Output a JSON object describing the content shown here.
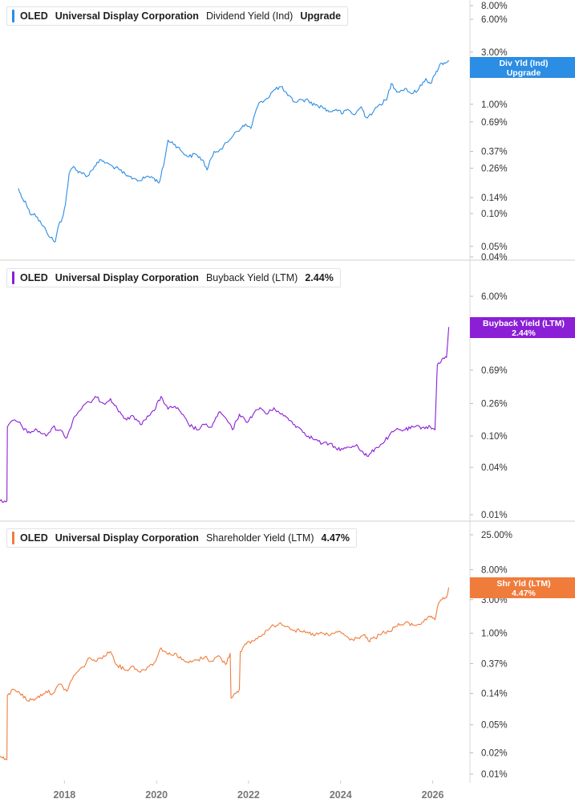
{
  "colors": {
    "dividend": "#2b8de3",
    "buyback": "#8a1fd6",
    "shareholder": "#f07c3c",
    "separator": "#cfcfcf",
    "tick_text": "#333333",
    "xtick_text": "#777777"
  },
  "x_axis": {
    "range": [
      2016.6,
      2026.6
    ],
    "ticks": [
      2018,
      2020,
      2022,
      2024,
      2026
    ],
    "tick_labels": [
      "2018",
      "2020",
      "2022",
      "2024",
      "2026"
    ]
  },
  "panels": [
    {
      "ticker": "OLED",
      "company": "Universal Display Corporation",
      "metric": "Dividend Yield (Ind)",
      "value": "Upgrade",
      "tag_line1": "Div Yld (Ind)",
      "tag_line2": "Upgrade"
    },
    {
      "ticker": "OLED",
      "company": "Universal Display Corporation",
      "metric": "Buyback Yield (LTM)",
      "value": "2.44%",
      "tag_line1": "Buyback Yield (LTM)",
      "tag_line2": "2.44%"
    },
    {
      "ticker": "OLED",
      "company": "Universal Display Corporation",
      "metric": "Shareholder Yield (LTM)",
      "value": "4.47%",
      "tag_line1": "Shr Yld (LTM)",
      "tag_line2": "4.47%"
    }
  ],
  "chart_data": [
    {
      "type": "line",
      "title": "OLED Universal Display Corporation Dividend Yield (Ind)",
      "series": [
        {
          "name": "Dividend Yield (Ind)",
          "x": [
            2017.0,
            2017.07,
            2017.15,
            2017.25,
            2017.35,
            2017.5,
            2017.6,
            2017.7,
            2017.8,
            2017.88,
            2017.95,
            2018.02,
            2018.1,
            2018.2,
            2018.25,
            2018.35,
            2018.5,
            2018.65,
            2018.8,
            2018.9,
            2019.05,
            2019.2,
            2019.35,
            2019.5,
            2019.65,
            2019.8,
            2019.95,
            2020.05,
            2020.15,
            2020.25,
            2020.4,
            2020.55,
            2020.7,
            2020.85,
            2021.0,
            2021.1,
            2021.25,
            2021.4,
            2021.55,
            2021.7,
            2021.85,
            2021.95,
            2022.05,
            2022.15,
            2022.25,
            2022.4,
            2022.55,
            2022.7,
            2022.85,
            2023.0,
            2023.15,
            2023.3,
            2023.45,
            2023.6,
            2023.75,
            2023.9,
            2024.05,
            2024.15,
            2024.3,
            2024.45,
            2024.55,
            2024.7,
            2024.85,
            2025.0,
            2025.1,
            2025.25,
            2025.4,
            2025.55,
            2025.7,
            2025.85,
            2025.95,
            2026.05,
            2026.15,
            2026.25,
            2026.35
          ],
          "y": [
            0.17,
            0.14,
            0.13,
            0.1,
            0.1,
            0.08,
            0.07,
            0.06,
            0.055,
            0.08,
            0.09,
            0.12,
            0.23,
            0.27,
            0.25,
            0.24,
            0.22,
            0.27,
            0.31,
            0.29,
            0.27,
            0.25,
            0.22,
            0.21,
            0.2,
            0.22,
            0.21,
            0.19,
            0.27,
            0.47,
            0.43,
            0.37,
            0.33,
            0.35,
            0.31,
            0.25,
            0.37,
            0.39,
            0.45,
            0.55,
            0.61,
            0.65,
            0.6,
            0.85,
            1.05,
            1.13,
            1.35,
            1.45,
            1.2,
            1.05,
            1.1,
            1.08,
            0.98,
            0.95,
            0.85,
            0.9,
            0.82,
            0.9,
            0.8,
            0.95,
            0.76,
            0.84,
            1.0,
            1.1,
            1.55,
            1.3,
            1.4,
            1.25,
            1.38,
            1.72,
            1.55,
            1.85,
            2.3,
            2.4,
            2.52
          ]
        }
      ],
      "y_scale": "log",
      "y_ticks": [
        8.0,
        6.0,
        3.0,
        1.0,
        0.69,
        0.37,
        0.26,
        0.14,
        0.1,
        0.05,
        0.04
      ],
      "y_tick_labels": [
        "8.00%",
        "6.00%",
        "3.00%",
        "1.00%",
        "0.69%",
        "0.37%",
        "0.26%",
        "0.14%",
        "0.10%",
        "0.05%",
        "0.04%"
      ],
      "grid": false,
      "legend": "top-left"
    },
    {
      "type": "line",
      "title": "OLED Universal Display Corporation Buyback Yield (LTM)",
      "series": [
        {
          "name": "Buyback Yield (LTM)",
          "x": [
            2016.6,
            2016.7,
            2016.75,
            2016.76,
            2016.9,
            2017.0,
            2017.2,
            2017.4,
            2017.6,
            2017.75,
            2017.9,
            2018.05,
            2018.2,
            2018.4,
            2018.55,
            2018.7,
            2018.85,
            2019.0,
            2019.15,
            2019.35,
            2019.5,
            2019.65,
            2019.8,
            2019.95,
            2020.1,
            2020.25,
            2020.4,
            2020.55,
            2020.7,
            2020.9,
            2021.05,
            2021.2,
            2021.35,
            2021.5,
            2021.65,
            2021.8,
            2021.95,
            2022.1,
            2022.25,
            2022.4,
            2022.55,
            2022.7,
            2022.85,
            2023.0,
            2023.15,
            2023.3,
            2023.45,
            2023.6,
            2023.75,
            2023.9,
            2024.05,
            2024.2,
            2024.35,
            2024.5,
            2024.6,
            2024.75,
            2024.9,
            2025.05,
            2025.2,
            2025.4,
            2025.6,
            2025.8,
            2025.95,
            2026.05,
            2026.1,
            2026.2,
            2026.3,
            2026.35
          ],
          "y": [
            0.015,
            0.015,
            0.015,
            0.13,
            0.16,
            0.15,
            0.11,
            0.12,
            0.1,
            0.13,
            0.12,
            0.095,
            0.17,
            0.24,
            0.27,
            0.31,
            0.26,
            0.3,
            0.22,
            0.16,
            0.18,
            0.14,
            0.18,
            0.21,
            0.32,
            0.22,
            0.24,
            0.19,
            0.14,
            0.12,
            0.14,
            0.13,
            0.2,
            0.17,
            0.12,
            0.19,
            0.15,
            0.19,
            0.23,
            0.19,
            0.23,
            0.19,
            0.17,
            0.14,
            0.12,
            0.1,
            0.09,
            0.08,
            0.08,
            0.07,
            0.068,
            0.072,
            0.078,
            0.06,
            0.055,
            0.07,
            0.08,
            0.1,
            0.12,
            0.12,
            0.13,
            0.13,
            0.13,
            0.12,
            0.8,
            0.95,
            1.0,
            2.44
          ]
        }
      ],
      "y_scale": "log",
      "y_ticks": [
        6.0,
        0.69,
        0.26,
        0.1,
        0.04,
        0.01
      ],
      "y_tick_labels": [
        "6.00%",
        "0.69%",
        "0.26%",
        "0.10%",
        "0.04%",
        "0.01%"
      ],
      "grid": false,
      "legend": "top-left"
    },
    {
      "type": "line",
      "title": "OLED Universal Display Corporation Shareholder Yield (LTM)",
      "series": [
        {
          "name": "Shareholder Yield (LTM)",
          "x": [
            2016.6,
            2016.7,
            2016.75,
            2016.76,
            2016.9,
            2017.0,
            2017.2,
            2017.4,
            2017.6,
            2017.75,
            2017.9,
            2018.05,
            2018.2,
            2018.4,
            2018.55,
            2018.7,
            2018.85,
            2019.0,
            2019.15,
            2019.35,
            2019.5,
            2019.65,
            2019.8,
            2019.95,
            2020.1,
            2020.25,
            2020.4,
            2020.55,
            2020.7,
            2020.9,
            2021.05,
            2021.2,
            2021.35,
            2021.5,
            2021.6,
            2021.62,
            2021.7,
            2021.8,
            2021.82,
            2021.95,
            2022.1,
            2022.25,
            2022.4,
            2022.55,
            2022.7,
            2022.85,
            2023.0,
            2023.15,
            2023.3,
            2023.45,
            2023.6,
            2023.75,
            2023.9,
            2024.05,
            2024.2,
            2024.35,
            2024.5,
            2024.6,
            2024.75,
            2024.9,
            2025.05,
            2025.2,
            2025.4,
            2025.6,
            2025.8,
            2025.95,
            2026.05,
            2026.1,
            2026.2,
            2026.3,
            2026.35
          ],
          "y": [
            0.018,
            0.016,
            0.016,
            0.13,
            0.16,
            0.15,
            0.11,
            0.12,
            0.15,
            0.14,
            0.19,
            0.15,
            0.25,
            0.33,
            0.45,
            0.4,
            0.48,
            0.55,
            0.35,
            0.3,
            0.34,
            0.28,
            0.33,
            0.38,
            0.62,
            0.5,
            0.52,
            0.42,
            0.38,
            0.42,
            0.46,
            0.4,
            0.48,
            0.36,
            0.52,
            0.12,
            0.14,
            0.16,
            0.55,
            0.7,
            0.78,
            0.9,
            1.1,
            1.28,
            1.4,
            1.25,
            1.1,
            1.05,
            1.0,
            0.95,
            1.0,
            0.92,
            1.05,
            1.0,
            0.8,
            0.85,
            0.95,
            0.78,
            0.85,
            1.0,
            1.05,
            1.25,
            1.4,
            1.3,
            1.45,
            1.7,
            1.55,
            2.3,
            3.0,
            3.2,
            4.47
          ]
        }
      ],
      "y_scale": "log",
      "y_ticks": [
        25.0,
        8.0,
        3.0,
        1.0,
        0.37,
        0.14,
        0.05,
        0.02,
        0.01
      ],
      "y_tick_labels": [
        "25.00%",
        "8.00%",
        "3.00%",
        "1.00%",
        "0.37%",
        "0.14%",
        "0.05%",
        "0.02%",
        "0.01%"
      ],
      "grid": false,
      "legend": "top-left"
    }
  ]
}
